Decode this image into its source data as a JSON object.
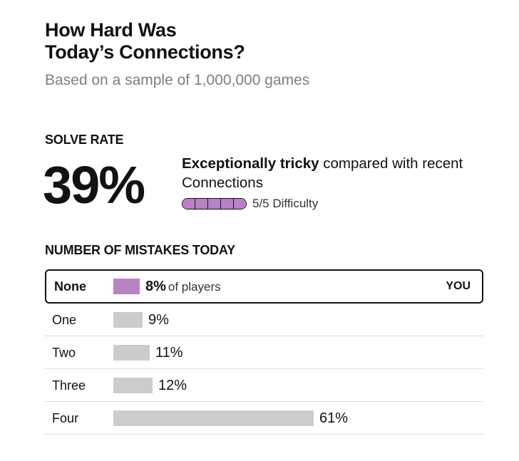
{
  "header": {
    "title_line1": "How Hard Was",
    "title_line2": "Today’s Connections?",
    "subtitle": "Based on a sample of 1,000,000 games"
  },
  "solve": {
    "label": "SOLVE RATE",
    "rate": "39%",
    "desc_bold": "Exceptionally tricky",
    "desc_rest": " compared with recent Connections",
    "difficulty_text": "5/5 Difficulty",
    "difficulty_level": 5,
    "difficulty_max": 5,
    "meter_color": "#ba81c5"
  },
  "mistakes": {
    "label": "NUMBER OF MISTAKES TODAY",
    "you_tag": "YOU",
    "of_players": "of players",
    "highlight_color": "#ba81c5",
    "bar_color": "#cccccc",
    "rows": [
      {
        "label": "None",
        "pct": "8%",
        "value": 8
      },
      {
        "label": "One",
        "pct": "9%",
        "value": 9
      },
      {
        "label": "Two",
        "pct": "11%",
        "value": 11
      },
      {
        "label": "Three",
        "pct": "12%",
        "value": 12
      },
      {
        "label": "Four",
        "pct": "61%",
        "value": 61
      }
    ]
  }
}
